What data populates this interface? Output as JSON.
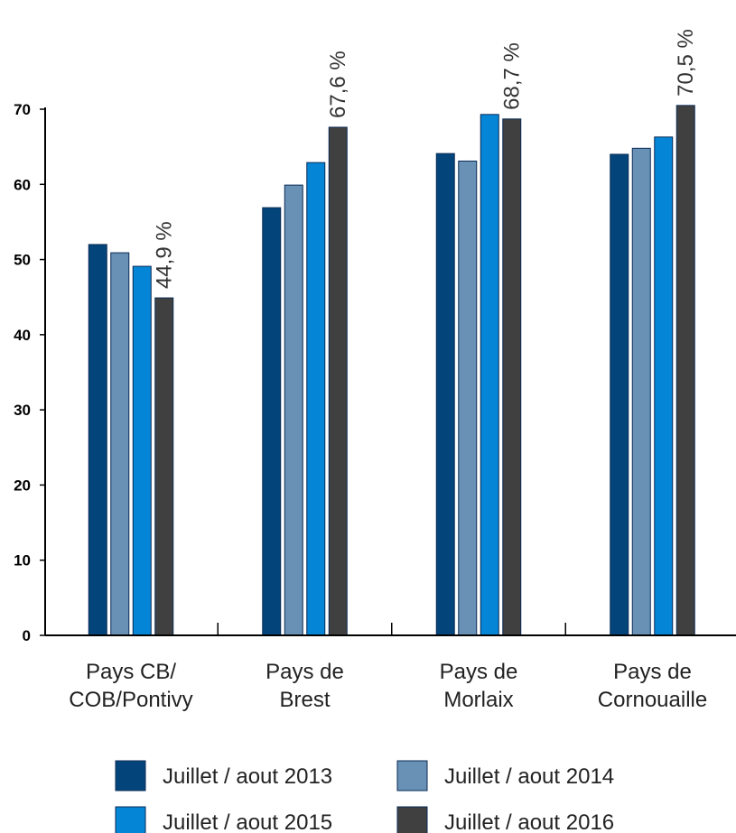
{
  "chart_data": {
    "type": "bar",
    "categories": [
      [
        "Pays CB/",
        "COB/Pontivy"
      ],
      [
        "Pays de",
        "Brest"
      ],
      [
        "Pays de",
        "Morlaix"
      ],
      [
        "Pays de",
        "Cornouaille"
      ]
    ],
    "series": [
      {
        "name": "Juillet / aout 2013",
        "color": "#03457b",
        "values": [
          52.0,
          56.9,
          64.1,
          64.0
        ]
      },
      {
        "name": "Juillet / aout 2014",
        "color": "#6891b5",
        "values": [
          50.9,
          59.9,
          63.1,
          64.8
        ]
      },
      {
        "name": "Juillet / aout 2015",
        "color": "#0485d5",
        "values": [
          49.1,
          62.9,
          69.3,
          66.3
        ]
      },
      {
        "name": "Juillet / aout 2016",
        "color": "#404040",
        "values": [
          44.9,
          67.6,
          68.7,
          70.5
        ]
      }
    ],
    "data_labels": [
      "44,9 %",
      "67,6 %",
      "68,7 %",
      "70,5 %"
    ],
    "ylim": [
      0,
      70
    ],
    "yticks": [
      0,
      10,
      20,
      30,
      40,
      50,
      60,
      70
    ],
    "grid": false,
    "legend_position": "bottom",
    "title": "",
    "xlabel": "",
    "ylabel": ""
  }
}
